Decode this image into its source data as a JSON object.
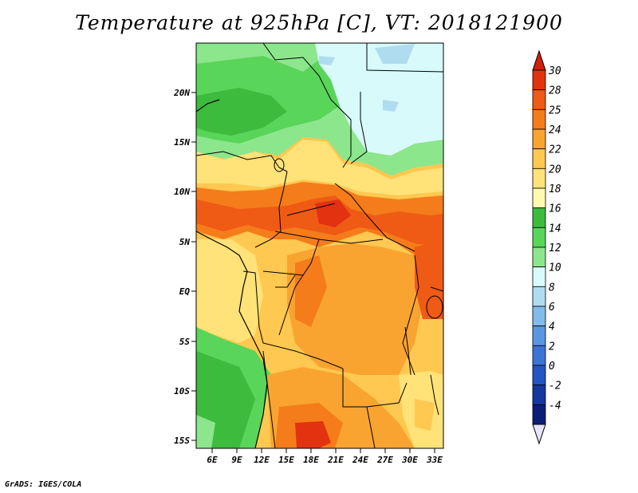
{
  "title": "Temperature at 925hPa [C], VT: 2018121900",
  "footer": "GrADS: IGES/COLA",
  "map": {
    "lat_labels": [
      "20N",
      "15N",
      "10N",
      "5N",
      "EQ",
      "5S",
      "10S",
      "15S"
    ],
    "lon_labels": [
      "6E",
      "9E",
      "12E",
      "15E",
      "18E",
      "21E",
      "24E",
      "27E",
      "30E",
      "33E"
    ],
    "colors": {
      "green_dark": "#3dbb3d",
      "green_mid": "#59d559",
      "green_light": "#8ce68c",
      "cyan_light": "#d8fafa",
      "sky": "#b0dcf0",
      "yellow_pale": "#fffab0",
      "yellow": "#ffe278",
      "orange_light": "#ffc850",
      "orange": "#f9a431",
      "orange_dark": "#f57c1a",
      "red_orange": "#ef5a14",
      "red": "#e23210"
    }
  },
  "colorbar": {
    "labels": [
      "30",
      "28",
      "25",
      "24",
      "22",
      "20",
      "18",
      "16",
      "14",
      "12",
      "10",
      "8",
      "6",
      "4",
      "2",
      "0",
      "-2",
      "-4"
    ],
    "colors": [
      "#e23210",
      "#ef5a14",
      "#f57c1a",
      "#f9a431",
      "#ffc850",
      "#ffe278",
      "#fffab0",
      "#3dbb3d",
      "#59d559",
      "#8ce68c",
      "#d8fafa",
      "#b0dcf0",
      "#82bceb",
      "#5a96e1",
      "#3c73d7",
      "#2355c3",
      "#1437a0",
      "#0a1e78"
    ],
    "top_color": "#d21e0a",
    "bottom_color": "#e8e4fa"
  }
}
